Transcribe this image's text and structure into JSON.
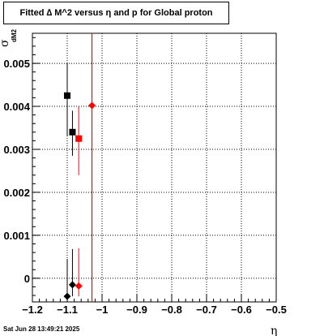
{
  "title": "Fitted ∆ M^2 versus η and p for Global proton",
  "timestamp": "Sat Jun 28 13:49:21 2025",
  "chart_data": {
    "type": "scatter",
    "title": "Fitted ∆ M^2 versus η and p for Global proton",
    "xlabel": "η",
    "ylabel": "σ",
    "ylabel_sub": "dM2",
    "xlim": [
      -1.2,
      -0.5
    ],
    "ylim": [
      -0.00055,
      0.0057
    ],
    "grid": true,
    "x_ticks": [
      -1.2,
      -1.1,
      -1.0,
      -0.9,
      -0.8,
      -0.7,
      -0.6,
      -0.5
    ],
    "x_tick_labels": [
      "−1.2",
      "−1.1",
      "−1",
      "−0.9",
      "−0.8",
      "−0.7",
      "−0.6",
      "−0.5"
    ],
    "y_ticks": [
      0,
      0.001,
      0.002,
      0.003,
      0.004,
      0.005
    ],
    "y_tick_labels": [
      "0",
      "0.001",
      "0.002",
      "0.003",
      "0.004",
      "0.005"
    ],
    "vertical_line": {
      "x": -1.029,
      "color": "#ff0000"
    },
    "series": [
      {
        "color": "#000000",
        "marker": "square",
        "points": [
          {
            "x": -1.1,
            "y": 0.00425,
            "err_lo": 0.0033,
            "err_hi": 0.005
          },
          {
            "x": -1.085,
            "y": 0.0034,
            "err_lo": 0.00285,
            "err_hi": 0.0039
          }
        ]
      },
      {
        "color": "#ff0000",
        "marker": "square",
        "points": [
          {
            "x": -1.067,
            "y": 0.00325,
            "err_lo": 0.0024,
            "err_hi": 0.004
          }
        ]
      },
      {
        "color": "#ff0000",
        "marker": "diamond",
        "points": [
          {
            "x": -1.029,
            "y": 0.00402,
            "err_lo": 0.00402,
            "err_hi": 0.00402
          }
        ]
      },
      {
        "color": "#000000",
        "marker": "diamond",
        "points": [
          {
            "x": -1.1,
            "y": -0.00042,
            "err_lo": -0.00042,
            "err_hi": 0.00045
          },
          {
            "x": -1.085,
            "y": -0.00015,
            "err_lo": -0.00042,
            "err_hi": 0.00068
          }
        ]
      },
      {
        "color": "#ff0000",
        "marker": "diamond",
        "points": [
          {
            "x": -1.067,
            "y": -0.00018,
            "err_lo": -0.00042,
            "err_hi": 0.0007
          }
        ]
      }
    ]
  }
}
